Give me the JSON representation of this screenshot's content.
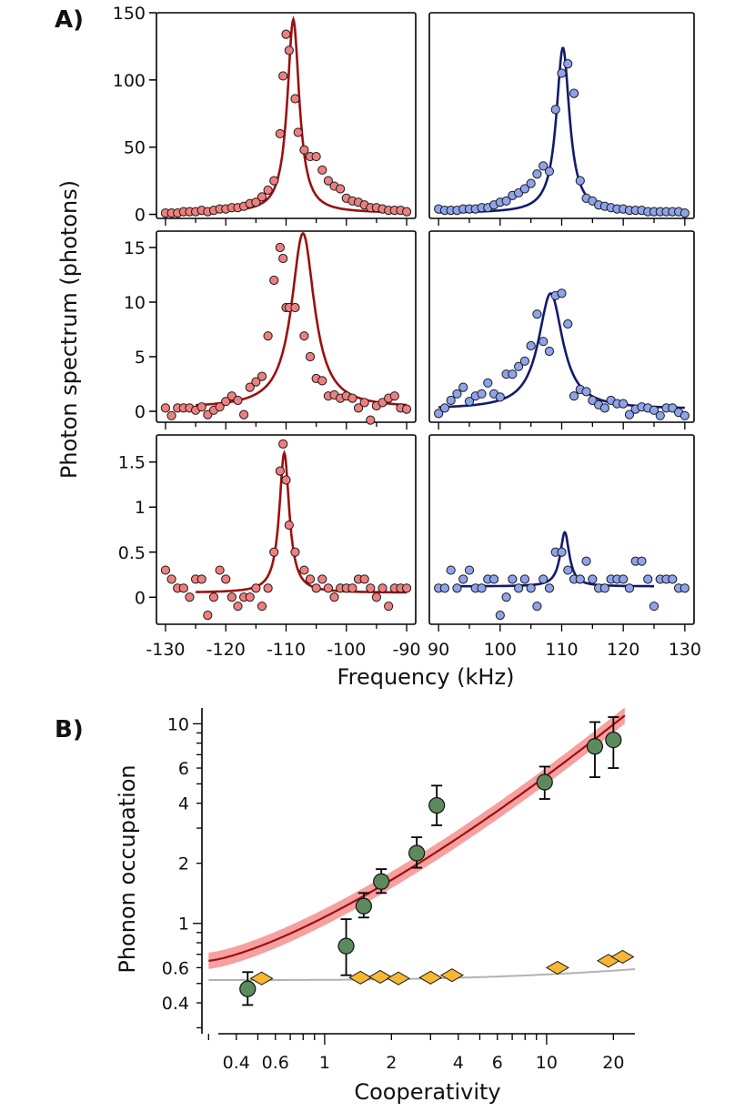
{
  "figure": {
    "panel_a_label": "A)",
    "panel_b_label": "B)"
  },
  "colors": {
    "red_line": "#9b1010",
    "red_points": "#ef7f7f",
    "blue_line": "#131a6e",
    "blue_points": "#8ea3ec",
    "band": "#f58f8f",
    "gray_line": "#b2b2b2",
    "green_points": "#5c8a5c",
    "diamonds": "#f7b733"
  },
  "chart_data": [
    {
      "panel": "A",
      "type": "scatter",
      "ylabel": "Photon spectrum (photons)",
      "xlabel": "Frequency (kHz)",
      "x_ticks_left": [
        "-130",
        "-120",
        "-110",
        "-100",
        "-90"
      ],
      "x_ticks_right": [
        "90",
        "100",
        "110",
        "120",
        "130"
      ],
      "rows": [
        {
          "ylim": [
            -3,
            150
          ],
          "y_ticks": [
            "0",
            "50",
            "100",
            "150"
          ],
          "y_tick_values": [
            0,
            50,
            100,
            150
          ],
          "left": {
            "x": [
              -130,
              -129,
              -128,
              -127,
              -126,
              -125,
              -124,
              -123,
              -122,
              -121,
              -120,
              -119,
              -118,
              -117,
              -116,
              -115,
              -114,
              -113,
              -112,
              -111,
              -110.5,
              -110,
              -109.5,
              -108.5,
              -108,
              -107,
              -106,
              -105,
              -104,
              -103,
              -102,
              -101,
              -100,
              -99,
              -98,
              -97,
              -96,
              -95,
              -94,
              -93,
              -92,
              -91,
              -90
            ],
            "y": [
              1,
              1,
              1,
              2,
              2,
              2,
              3,
              2,
              3,
              4,
              4,
              5,
              5,
              6,
              8,
              9,
              13,
              18,
              25,
              60,
              103,
              134,
              122,
              86,
              61,
              48,
              43,
              43,
              33,
              25,
              21,
              19,
              12,
              10,
              9,
              7,
              5,
              5,
              4,
              3,
              3,
              3,
              2
            ],
            "fit": {
              "center": -108.8,
              "hwhm": 1.2,
              "amp": 144,
              "offset": 1
            }
          },
          "right": {
            "x": [
              90,
              91,
              92,
              93,
              94,
              95,
              96,
              97,
              98,
              99,
              100,
              101,
              102,
              103,
              104,
              105,
              106,
              107,
              108,
              109,
              110,
              111,
              112,
              113,
              114,
              115,
              116,
              117,
              118,
              119,
              120,
              121,
              122,
              123,
              124,
              125,
              126,
              127,
              128,
              129,
              130
            ],
            "y": [
              4,
              3,
              3,
              3,
              4,
              4,
              4,
              5,
              5,
              7,
              9,
              10,
              14,
              16,
              19,
              23,
              30,
              36,
              32,
              78,
              105,
              112,
              90,
              25,
              12,
              10,
              7,
              6,
              5,
              4,
              4,
              3,
              3,
              3,
              2,
              2,
              2,
              2,
              2,
              2,
              1
            ],
            "fit": {
              "center": 110.2,
              "hwhm": 1.3,
              "amp": 123,
              "offset": 1
            }
          }
        },
        {
          "ylim": [
            -1,
            16.5
          ],
          "y_ticks": [
            "0",
            "5",
            "10",
            "15"
          ],
          "y_tick_values": [
            0,
            5,
            10,
            15
          ],
          "left": {
            "x": [
              -130,
              -129,
              -128,
              -127,
              -126,
              -125,
              -124,
              -123,
              -122,
              -121,
              -120,
              -119,
              -118,
              -117,
              -116,
              -115,
              -114,
              -113,
              -112,
              -111,
              -110.5,
              -110,
              -109.5,
              -108.5,
              -107,
              -106,
              -105,
              -104,
              -103,
              -102,
              -101,
              -100,
              -99,
              -98,
              -97,
              -96,
              -95,
              -94,
              -93,
              -92,
              -91,
              -90
            ],
            "y": [
              0.3,
              -0.4,
              0.3,
              0.3,
              0.3,
              0.1,
              0.4,
              -0.3,
              0.1,
              0.4,
              0.9,
              1.4,
              1.0,
              -0.3,
              2.2,
              2.7,
              3.2,
              6.9,
              12.0,
              15.0,
              14.0,
              9.5,
              9.5,
              9.5,
              6.9,
              5.0,
              3.0,
              2.8,
              1.4,
              1.5,
              1.2,
              1.4,
              1.2,
              0.3,
              0.8,
              -0.8,
              0.5,
              0.8,
              1.2,
              1.4,
              0.3,
              0.2
            ],
            "fit": {
              "center": -107.2,
              "hwhm": 2.3,
              "amp": 16,
              "offset": 0.3
            }
          },
          "right": {
            "x": [
              90,
              91,
              92,
              93,
              94,
              95,
              96,
              97,
              98,
              99,
              100,
              101,
              102,
              103,
              104,
              105,
              106,
              107,
              108,
              109,
              110,
              111,
              112,
              113,
              114,
              115,
              116,
              117,
              118,
              119,
              120,
              121,
              122,
              123,
              124,
              125,
              126,
              127,
              128,
              129,
              130
            ],
            "y": [
              -0.2,
              0.3,
              1.0,
              1.6,
              2.2,
              0.9,
              1.4,
              1.6,
              2.6,
              1.6,
              1.3,
              3.4,
              3.4,
              4.1,
              4.6,
              6.0,
              8.9,
              6.4,
              5.5,
              10.6,
              10.8,
              8.0,
              1.4,
              2.0,
              1.8,
              1.0,
              0.6,
              0.3,
              1.0,
              0.7,
              0.7,
              -0.3,
              0.2,
              0.4,
              0.3,
              0.1,
              -0.4,
              0.3,
              0.3,
              -0.1,
              -0.4
            ],
            "fit": {
              "center": 108.2,
              "hwhm": 2.4,
              "amp": 10.6,
              "offset": 0.2
            }
          }
        },
        {
          "ylim": [
            -0.3,
            1.8
          ],
          "y_ticks": [
            "0",
            "0.5",
            "1",
            "1.5"
          ],
          "y_tick_values": [
            0,
            0.5,
            1,
            1.5
          ],
          "left": {
            "x": [
              -130,
              -129,
              -128,
              -127,
              -126,
              -125,
              -124,
              -123,
              -122,
              -121,
              -120,
              -119,
              -118,
              -117,
              -116,
              -115,
              -114,
              -113,
              -112,
              -111,
              -110.5,
              -110,
              -109.5,
              -108.5,
              -107,
              -106,
              -105,
              -104,
              -103,
              -102,
              -101,
              -100,
              -99,
              -98,
              -97,
              -96,
              -95,
              -94,
              -93,
              -92,
              -91,
              -90
            ],
            "y": [
              0.3,
              0.2,
              0.1,
              0.1,
              0.0,
              0.2,
              0.2,
              -0.2,
              0.0,
              0.3,
              0.2,
              0.0,
              -0.1,
              0.0,
              0.0,
              0.1,
              -0.1,
              0.1,
              0.5,
              1.4,
              1.7,
              1.3,
              0.8,
              0.5,
              0.3,
              0.2,
              0.1,
              0.2,
              0.1,
              0.0,
              0.1,
              0.1,
              0.1,
              0.2,
              0.2,
              0.1,
              0.0,
              0.1,
              -0.1,
              0.1,
              0.1,
              0.1
            ],
            "fit": {
              "center": -110.3,
              "hwhm": 1.0,
              "amp": 1.55,
              "offset": 0.05
            }
          },
          "right": {
            "x": [
              90,
              91,
              92,
              93,
              94,
              95,
              96,
              97,
              98,
              99,
              100,
              101,
              102,
              103,
              104,
              105,
              106,
              107,
              108,
              109,
              110,
              111,
              112,
              113,
              114,
              115,
              116,
              117,
              118,
              119,
              120,
              121,
              122,
              123,
              124,
              125,
              126,
              127,
              128,
              129,
              130
            ],
            "y": [
              0.1,
              0.1,
              0.3,
              0.1,
              0.2,
              0.3,
              0.1,
              0.1,
              0.2,
              0.2,
              -0.2,
              0.0,
              0.2,
              0.1,
              0.2,
              0.1,
              -0.1,
              0.2,
              0.1,
              0.5,
              0.5,
              0.3,
              0.2,
              0.2,
              0.4,
              0.2,
              0.1,
              0.1,
              0.2,
              0.2,
              0.2,
              0.1,
              0.4,
              0.4,
              0.2,
              -0.1,
              0.2,
              0.2,
              0.2,
              0.1,
              0.1
            ],
            "fit": {
              "center": 110.5,
              "hwhm": 0.9,
              "amp": 0.6,
              "offset": 0.12
            }
          }
        }
      ]
    },
    {
      "panel": "B",
      "type": "scatter",
      "log_x": true,
      "log_y": true,
      "xlabel": "Cooperativity",
      "ylabel": "Phonon occupation",
      "xlim": [
        0.28,
        25
      ],
      "ylim": [
        0.28,
        12
      ],
      "x_ticks": [
        "0.4",
        "0.6",
        "1",
        "2",
        "4",
        "6",
        "10",
        "20"
      ],
      "x_tick_values": [
        0.4,
        0.6,
        1,
        2,
        4,
        6,
        10,
        20
      ],
      "y_ticks": [
        "0.4",
        "0.6",
        "1",
        "2",
        "4",
        "6",
        "10"
      ],
      "y_tick_values": [
        0.4,
        0.6,
        1,
        2,
        4,
        6,
        10
      ],
      "points": {
        "x": [
          0.45,
          1.25,
          1.5,
          1.8,
          2.6,
          3.2,
          9.8,
          16.5,
          20
        ],
        "y": [
          0.47,
          0.77,
          1.22,
          1.62,
          2.25,
          3.9,
          5.1,
          7.7,
          8.3
        ],
        "err_low": [
          0.08,
          0.22,
          0.15,
          0.2,
          0.35,
          0.8,
          0.9,
          2.3,
          2.3
        ],
        "err_high": [
          0.1,
          0.28,
          0.2,
          0.25,
          0.45,
          1.0,
          1.0,
          2.5,
          2.5
        ]
      },
      "diamonds": {
        "x": [
          0.52,
          1.45,
          1.78,
          2.15,
          3.0,
          3.75,
          11.2,
          19.0,
          22.0
        ],
        "y": [
          0.53,
          0.535,
          0.54,
          0.53,
          0.535,
          0.55,
          0.6,
          0.65,
          0.68
        ]
      },
      "red_fit": {
        "x_min": 0.3,
        "x_max": 22.5,
        "y_min": 0.65,
        "y_max": 11.0
      },
      "gray_fit": {
        "x_min": 0.3,
        "x_max": 25,
        "y_min": 0.52,
        "y_max": 0.59
      }
    }
  ]
}
